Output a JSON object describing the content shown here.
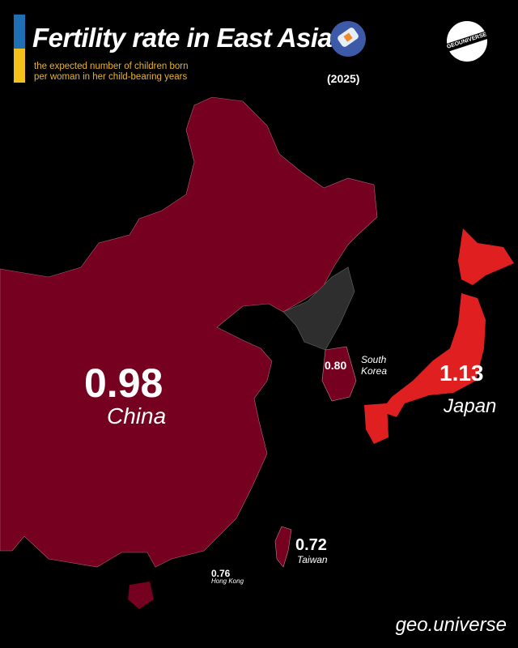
{
  "header": {
    "title": "Fertility rate in East Asia",
    "subtitle_line1": "the expected number of children born",
    "subtitle_line2": "per woman in her child-bearing years",
    "year": "(2025)",
    "title_icon": "pregnancy-test-icon",
    "logo_text": "GEOUNIVERSE"
  },
  "colors": {
    "china": "#76001f",
    "south_korea": "#76001f",
    "taiwan": "#76001f",
    "hong_kong": "#76001f",
    "japan": "#e02020",
    "north_korea": "#2e2e2e",
    "accent_blue": "#1f6fb5",
    "accent_yellow": "#f4c11a"
  },
  "regions": {
    "china": {
      "value": "0.98",
      "name": "China"
    },
    "japan": {
      "value": "1.13",
      "name": "Japan"
    },
    "south_korea": {
      "value": "0.80",
      "name_line1": "South",
      "name_line2": "Korea"
    },
    "taiwan": {
      "value": "0.72",
      "name": "Taiwan"
    },
    "hong_kong": {
      "value": "0.76",
      "name": "Hong Kong"
    }
  },
  "footer": {
    "handle": "geo.universe"
  }
}
